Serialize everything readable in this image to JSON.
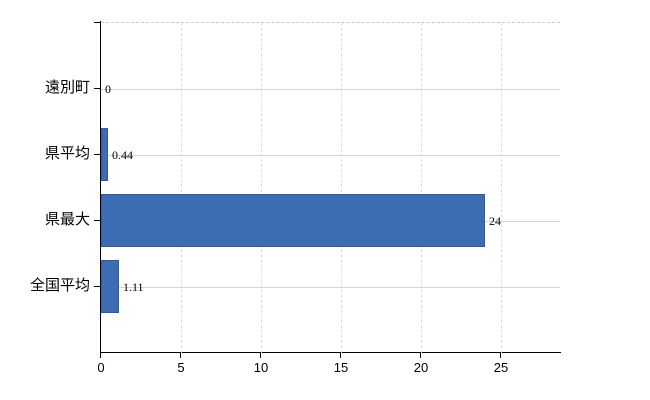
{
  "chart_data": {
    "type": "bar",
    "orientation": "horizontal",
    "title": "",
    "xlabel": "",
    "ylabel": "",
    "categories": [
      "遠別町",
      "県平均",
      "県最大",
      "全国平均"
    ],
    "values": [
      0,
      0.44,
      24,
      1.11
    ],
    "value_labels": [
      "0",
      "0.44",
      "24",
      "1.11"
    ],
    "x_tick_labels": [
      "0",
      "5",
      "10",
      "15",
      "20",
      "25"
    ],
    "x_tick_values": [
      0,
      5,
      10,
      15,
      20,
      25
    ],
    "xlim": [
      0,
      28.7
    ],
    "grid": "on",
    "legend_position": "none",
    "colors": {
      "bar_fill": "#3C6CB2",
      "bar_border": "#2E5C9E",
      "axis": "#000000",
      "gridline_horizontal": "#d4d8d4",
      "gridline_vertical": "#dcdcdc",
      "plot_top_border": "#c8c8c8",
      "text": "#000000"
    }
  }
}
